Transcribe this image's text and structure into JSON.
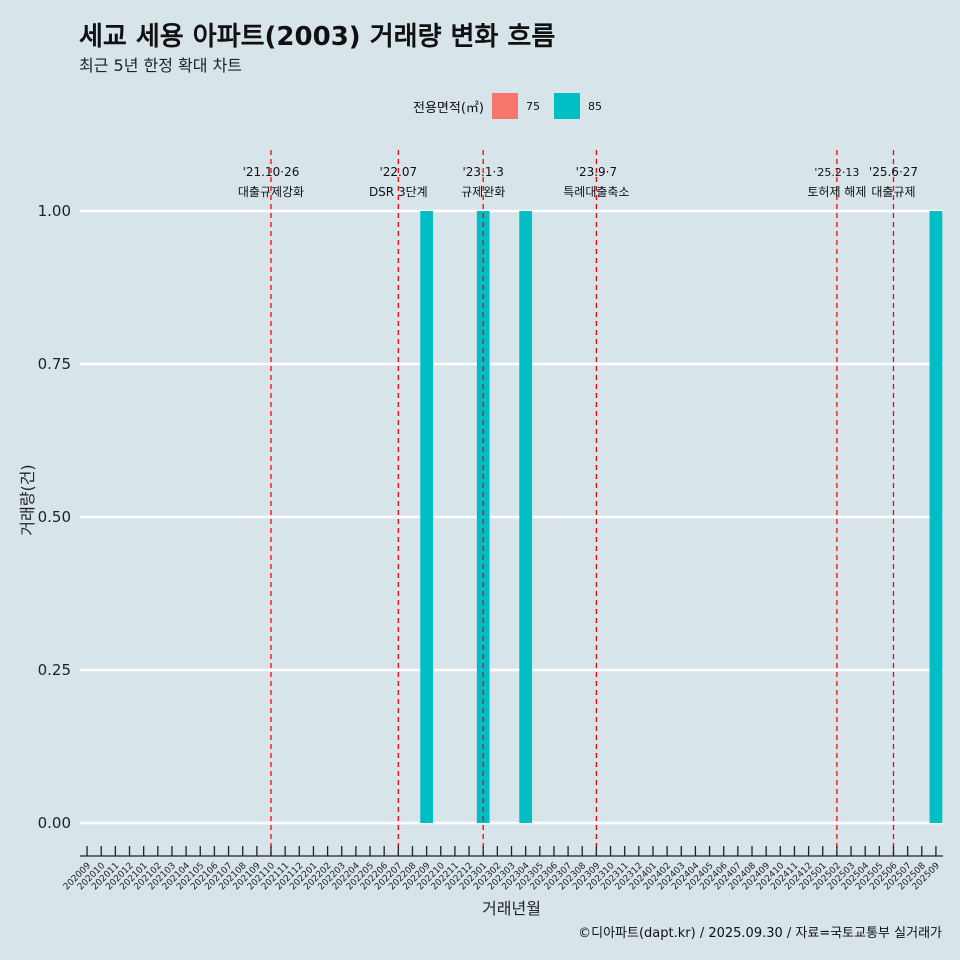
{
  "header": {
    "title": "세교 세용 아파트(2003) 거래량 변화 흐름",
    "subtitle": "최근 5년 한정 확대 차트"
  },
  "legend": {
    "title": "전용면적(㎡)",
    "items": [
      {
        "label": "75",
        "color": "#f8766d"
      },
      {
        "label": "85",
        "color": "#00bfc4"
      }
    ]
  },
  "caption": "©디아파트(dapt.kr) / 2025.09.30 / 자료=국토교통부 실거래가",
  "chart_data": {
    "type": "bar",
    "title": "세교 세용 아파트(2003) 거래량 변화 흐름",
    "xlabel": "거래년월",
    "ylabel": "거래량(건)",
    "ylim": [
      0,
      1
    ],
    "yticks": [
      "0.00",
      "0.25",
      "0.50",
      "0.75",
      "1.00"
    ],
    "categories": [
      "202009",
      "202010",
      "202011",
      "202012",
      "202101",
      "202102",
      "202103",
      "202104",
      "202105",
      "202106",
      "202107",
      "202108",
      "202109",
      "202110",
      "202111",
      "202112",
      "202201",
      "202202",
      "202203",
      "202204",
      "202205",
      "202206",
      "202207",
      "202208",
      "202209",
      "202210",
      "202211",
      "202212",
      "202301",
      "202302",
      "202303",
      "202304",
      "202305",
      "202306",
      "202307",
      "202308",
      "202309",
      "202310",
      "202311",
      "202312",
      "202401",
      "202402",
      "202403",
      "202404",
      "202405",
      "202406",
      "202407",
      "202408",
      "202409",
      "202410",
      "202411",
      "202412",
      "202501",
      "202502",
      "202503",
      "202504",
      "202505",
      "202506",
      "202507",
      "202508",
      "202509"
    ],
    "series": [
      {
        "name": "75",
        "color": "#f8766d",
        "values": [
          0,
          0,
          0,
          0,
          0,
          0,
          0,
          0,
          0,
          0,
          0,
          0,
          0,
          0,
          0,
          0,
          0,
          0,
          0,
          0,
          0,
          0,
          0,
          0,
          0,
          0,
          0,
          0,
          0,
          0,
          0,
          0,
          0,
          0,
          0,
          0,
          0,
          0,
          0,
          0,
          0,
          0,
          0,
          0,
          0,
          0,
          0,
          0,
          0,
          0,
          0,
          0,
          0,
          0,
          0,
          0,
          0,
          0,
          0,
          0,
          0
        ]
      },
      {
        "name": "85",
        "color": "#00bfc4",
        "values": [
          0,
          0,
          0,
          0,
          0,
          0,
          0,
          0,
          0,
          0,
          0,
          0,
          0,
          0,
          0,
          0,
          0,
          0,
          0,
          0,
          0,
          0,
          0,
          0,
          1,
          0,
          0,
          0,
          1,
          0,
          0,
          1,
          0,
          0,
          0,
          0,
          0,
          0,
          0,
          0,
          0,
          0,
          0,
          0,
          0,
          0,
          0,
          0,
          0,
          0,
          0,
          0,
          0,
          0,
          0,
          0,
          0,
          0,
          0,
          0,
          1
        ]
      }
    ],
    "events": [
      {
        "category": "202110",
        "date": "'21.10·26",
        "label": "대출규제강화"
      },
      {
        "category": "202207",
        "date": "'22.07",
        "label": "DSR 3단계"
      },
      {
        "category": "202301",
        "date": "'23.1·3",
        "label": "규제완화"
      },
      {
        "category": "202309",
        "date": "'23.9·7",
        "label": "특례대출축소"
      },
      {
        "category": "202502",
        "date": "'25.2·13",
        "label": "토허제 해제"
      },
      {
        "category": "202506",
        "date": "'25.6·27",
        "label": "대출규제"
      }
    ],
    "event_line_color": "#ff0000"
  }
}
